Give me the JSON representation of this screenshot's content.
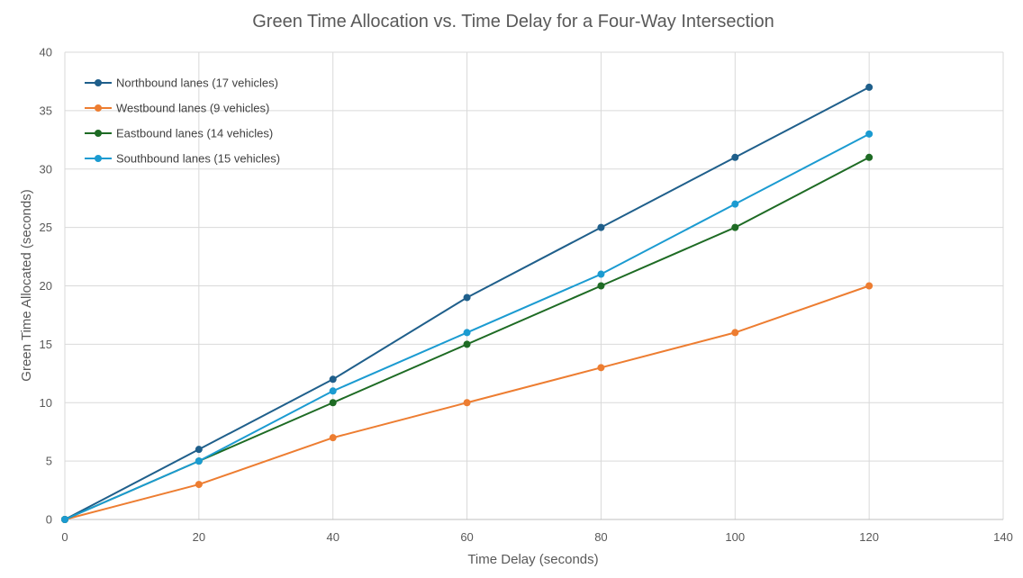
{
  "chart_data": {
    "type": "line",
    "title": "Green Time Allocation vs. Time Delay for a Four-Way Intersection",
    "xlabel": "Time Delay (seconds)",
    "ylabel": "Green Time Allocated (seconds)",
    "xlim": [
      0,
      140
    ],
    "ylim": [
      0,
      40
    ],
    "x_ticks": [
      "0",
      "20",
      "40",
      "60",
      "80",
      "100",
      "120",
      "140"
    ],
    "y_ticks": [
      "0",
      "5",
      "10",
      "15",
      "20",
      "25",
      "30",
      "35",
      "40"
    ],
    "grid": true,
    "legend_position": "top-left",
    "x": [
      0,
      20,
      40,
      60,
      80,
      100,
      120
    ],
    "series": [
      {
        "name": "Northbound lanes (17 vehicles)",
        "color": "#1f5f8b",
        "values": [
          0,
          6,
          12,
          19,
          25,
          31,
          37
        ]
      },
      {
        "name": "Westbound lanes (9 vehicles)",
        "color": "#ed7d31",
        "values": [
          0,
          3,
          7,
          10,
          13,
          16,
          20
        ]
      },
      {
        "name": "Eastbound lanes (14 vehicles)",
        "color": "#1e6b24",
        "values": [
          0,
          5,
          10,
          15,
          20,
          25,
          31
        ]
      },
      {
        "name": "Southbound lanes (15 vehicles)",
        "color": "#1b9bd1",
        "values": [
          0,
          5,
          11,
          16,
          21,
          27,
          33
        ]
      }
    ]
  }
}
